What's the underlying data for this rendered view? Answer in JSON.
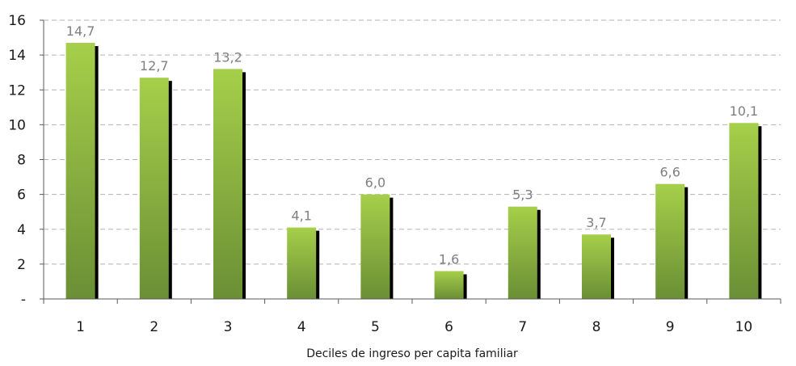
{
  "chart_data": {
    "type": "bar",
    "title": "",
    "xlabel": "Deciles de ingreso per capita familiar",
    "ylabel": "",
    "categories": [
      "1",
      "2",
      "3",
      "4",
      "5",
      "6",
      "7",
      "8",
      "9",
      "10"
    ],
    "values": [
      14.7,
      12.7,
      13.2,
      4.1,
      6.0,
      1.6,
      5.3,
      3.7,
      6.6,
      10.1
    ],
    "value_labels": [
      "14,7",
      "12,7",
      "13,2",
      "4,1",
      "6,0",
      "1,6",
      "5,3",
      "3,7",
      "6,6",
      "10,1"
    ],
    "ylim": [
      0,
      16
    ],
    "yticks": [
      0,
      2,
      4,
      6,
      8,
      10,
      12,
      14,
      16
    ],
    "ytick_labels": [
      "-",
      "2",
      "4",
      "6",
      "8",
      "10",
      "12",
      "14",
      "16"
    ],
    "grid": true,
    "legend": "none",
    "colors": {
      "bar_top": "#a6cf4a",
      "bar_bottom": "#6a8f35",
      "bar_shadow": "#000000",
      "grid": "#b3b3b3",
      "axis": "#595959",
      "data_label": "#7f7f7f"
    }
  }
}
